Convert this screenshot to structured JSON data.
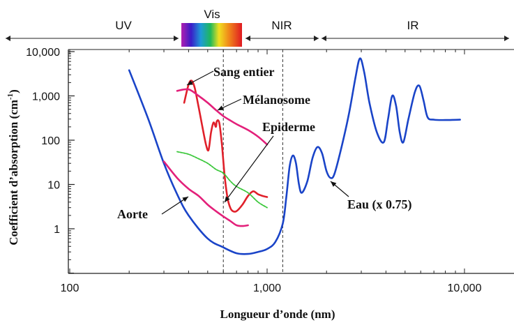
{
  "chart_data": {
    "type": "line",
    "xscale": "log",
    "yscale": "log",
    "xlim": [
      100,
      20000
    ],
    "ylim": [
      0.1,
      10000
    ],
    "xlabel": "Longueur d’onde (nm)",
    "ylabel_main": "Coefficient d’absorption (cm",
    "ylabel_sup": "-1",
    "ylabel_end": ")",
    "x_ticks": [
      {
        "value": 100,
        "label": "100"
      },
      {
        "value": 1000,
        "label": "1,000"
      },
      {
        "value": 10000,
        "label": "10,000"
      }
    ],
    "y_ticks": [
      {
        "value": 1,
        "label": "1"
      },
      {
        "value": 10,
        "label": "10"
      },
      {
        "value": 100,
        "label": "100"
      },
      {
        "value": 1000,
        "label": "1,000"
      },
      {
        "value": 10000,
        "label": "10,000"
      }
    ],
    "bands": [
      {
        "label": "UV",
        "from": 100,
        "to": 400
      },
      {
        "label": "Vis",
        "from": 400,
        "to": 700
      },
      {
        "label": "NIR",
        "from": 700,
        "to": 1400
      },
      {
        "label": "IR",
        "from": 1400,
        "to": 20000
      }
    ],
    "divider_lines": [
      600,
      1200
    ],
    "series": [
      {
        "name": "Eau (x 0.75)",
        "color": "#1a44c8",
        "points": [
          [
            200,
            3800
          ],
          [
            250,
            300
          ],
          [
            300,
            30
          ],
          [
            350,
            6
          ],
          [
            400,
            2
          ],
          [
            500,
            0.6
          ],
          [
            600,
            0.38
          ],
          [
            700,
            0.28
          ],
          [
            800,
            0.27
          ],
          [
            900,
            0.3
          ],
          [
            1000,
            0.35
          ],
          [
            1100,
            0.5
          ],
          [
            1200,
            1.3
          ],
          [
            1250,
            5
          ],
          [
            1300,
            25
          ],
          [
            1350,
            45
          ],
          [
            1400,
            30
          ],
          [
            1450,
            10
          ],
          [
            1500,
            6.5
          ],
          [
            1600,
            12
          ],
          [
            1700,
            40
          ],
          [
            1800,
            70
          ],
          [
            1900,
            50
          ],
          [
            2000,
            20
          ],
          [
            2100,
            14
          ],
          [
            2200,
            18
          ],
          [
            2400,
            80
          ],
          [
            2600,
            400
          ],
          [
            2800,
            2500
          ],
          [
            2950,
            7000
          ],
          [
            3100,
            3500
          ],
          [
            3300,
            700
          ],
          [
            3600,
            150
          ],
          [
            3900,
            90
          ],
          [
            4100,
            300
          ],
          [
            4300,
            1000
          ],
          [
            4500,
            600
          ],
          [
            4700,
            150
          ],
          [
            4900,
            90
          ],
          [
            5200,
            300
          ],
          [
            5600,
            1200
          ],
          [
            5900,
            1700
          ],
          [
            6200,
            800
          ],
          [
            6500,
            330
          ],
          [
            7000,
            290
          ],
          [
            8000,
            285
          ],
          [
            9500,
            290
          ]
        ]
      },
      {
        "name": "Sang entier",
        "color": "#e0202a",
        "points": [
          [
            380,
            700
          ],
          [
            400,
            1800
          ],
          [
            415,
            2200
          ],
          [
            430,
            1500
          ],
          [
            450,
            550
          ],
          [
            470,
            200
          ],
          [
            490,
            80
          ],
          [
            505,
            60
          ],
          [
            520,
            150
          ],
          [
            535,
            250
          ],
          [
            550,
            200
          ],
          [
            555,
            260
          ],
          [
            565,
            280
          ],
          [
            575,
            220
          ],
          [
            590,
            80
          ],
          [
            610,
            15
          ],
          [
            630,
            5
          ],
          [
            650,
            3
          ],
          [
            670,
            2.5
          ],
          [
            700,
            2.5
          ],
          [
            750,
            3.5
          ],
          [
            800,
            5.5
          ],
          [
            850,
            7
          ],
          [
            900,
            6
          ],
          [
            950,
            5.5
          ],
          [
            1000,
            5.2
          ]
        ]
      },
      {
        "name": "Mélanosome",
        "color": "#e3207a",
        "points": [
          [
            350,
            1300
          ],
          [
            400,
            1400
          ],
          [
            450,
            1000
          ],
          [
            500,
            700
          ],
          [
            550,
            480
          ],
          [
            600,
            350
          ],
          [
            650,
            280
          ],
          [
            700,
            230
          ],
          [
            800,
            170
          ],
          [
            900,
            120
          ],
          [
            1000,
            80
          ]
        ]
      },
      {
        "name": "Epiderme",
        "color": "#3cc83c",
        "dashed": true,
        "points": [
          [
            350,
            55
          ],
          [
            400,
            48
          ],
          [
            450,
            38
          ],
          [
            500,
            30
          ],
          [
            550,
            22
          ],
          [
            600,
            18
          ],
          [
            650,
            12
          ],
          [
            700,
            9
          ],
          [
            800,
            6.5
          ],
          [
            900,
            4
          ],
          [
            1000,
            3
          ]
        ]
      },
      {
        "name": "Aorte",
        "color": "#e3207a",
        "points": [
          [
            300,
            33
          ],
          [
            350,
            14
          ],
          [
            400,
            8
          ],
          [
            450,
            5.5
          ],
          [
            500,
            3.5
          ],
          [
            550,
            2.5
          ],
          [
            600,
            1.9
          ],
          [
            650,
            1.5
          ],
          [
            700,
            1.2
          ],
          [
            750,
            1.15
          ],
          [
            800,
            1.2
          ]
        ]
      }
    ],
    "annotations": [
      {
        "text": "Sang entier"
      },
      {
        "text": "Mélanosome"
      },
      {
        "text": "Epiderme"
      },
      {
        "text": "Aorte"
      },
      {
        "text": "Eau (x 0.75)"
      }
    ]
  }
}
